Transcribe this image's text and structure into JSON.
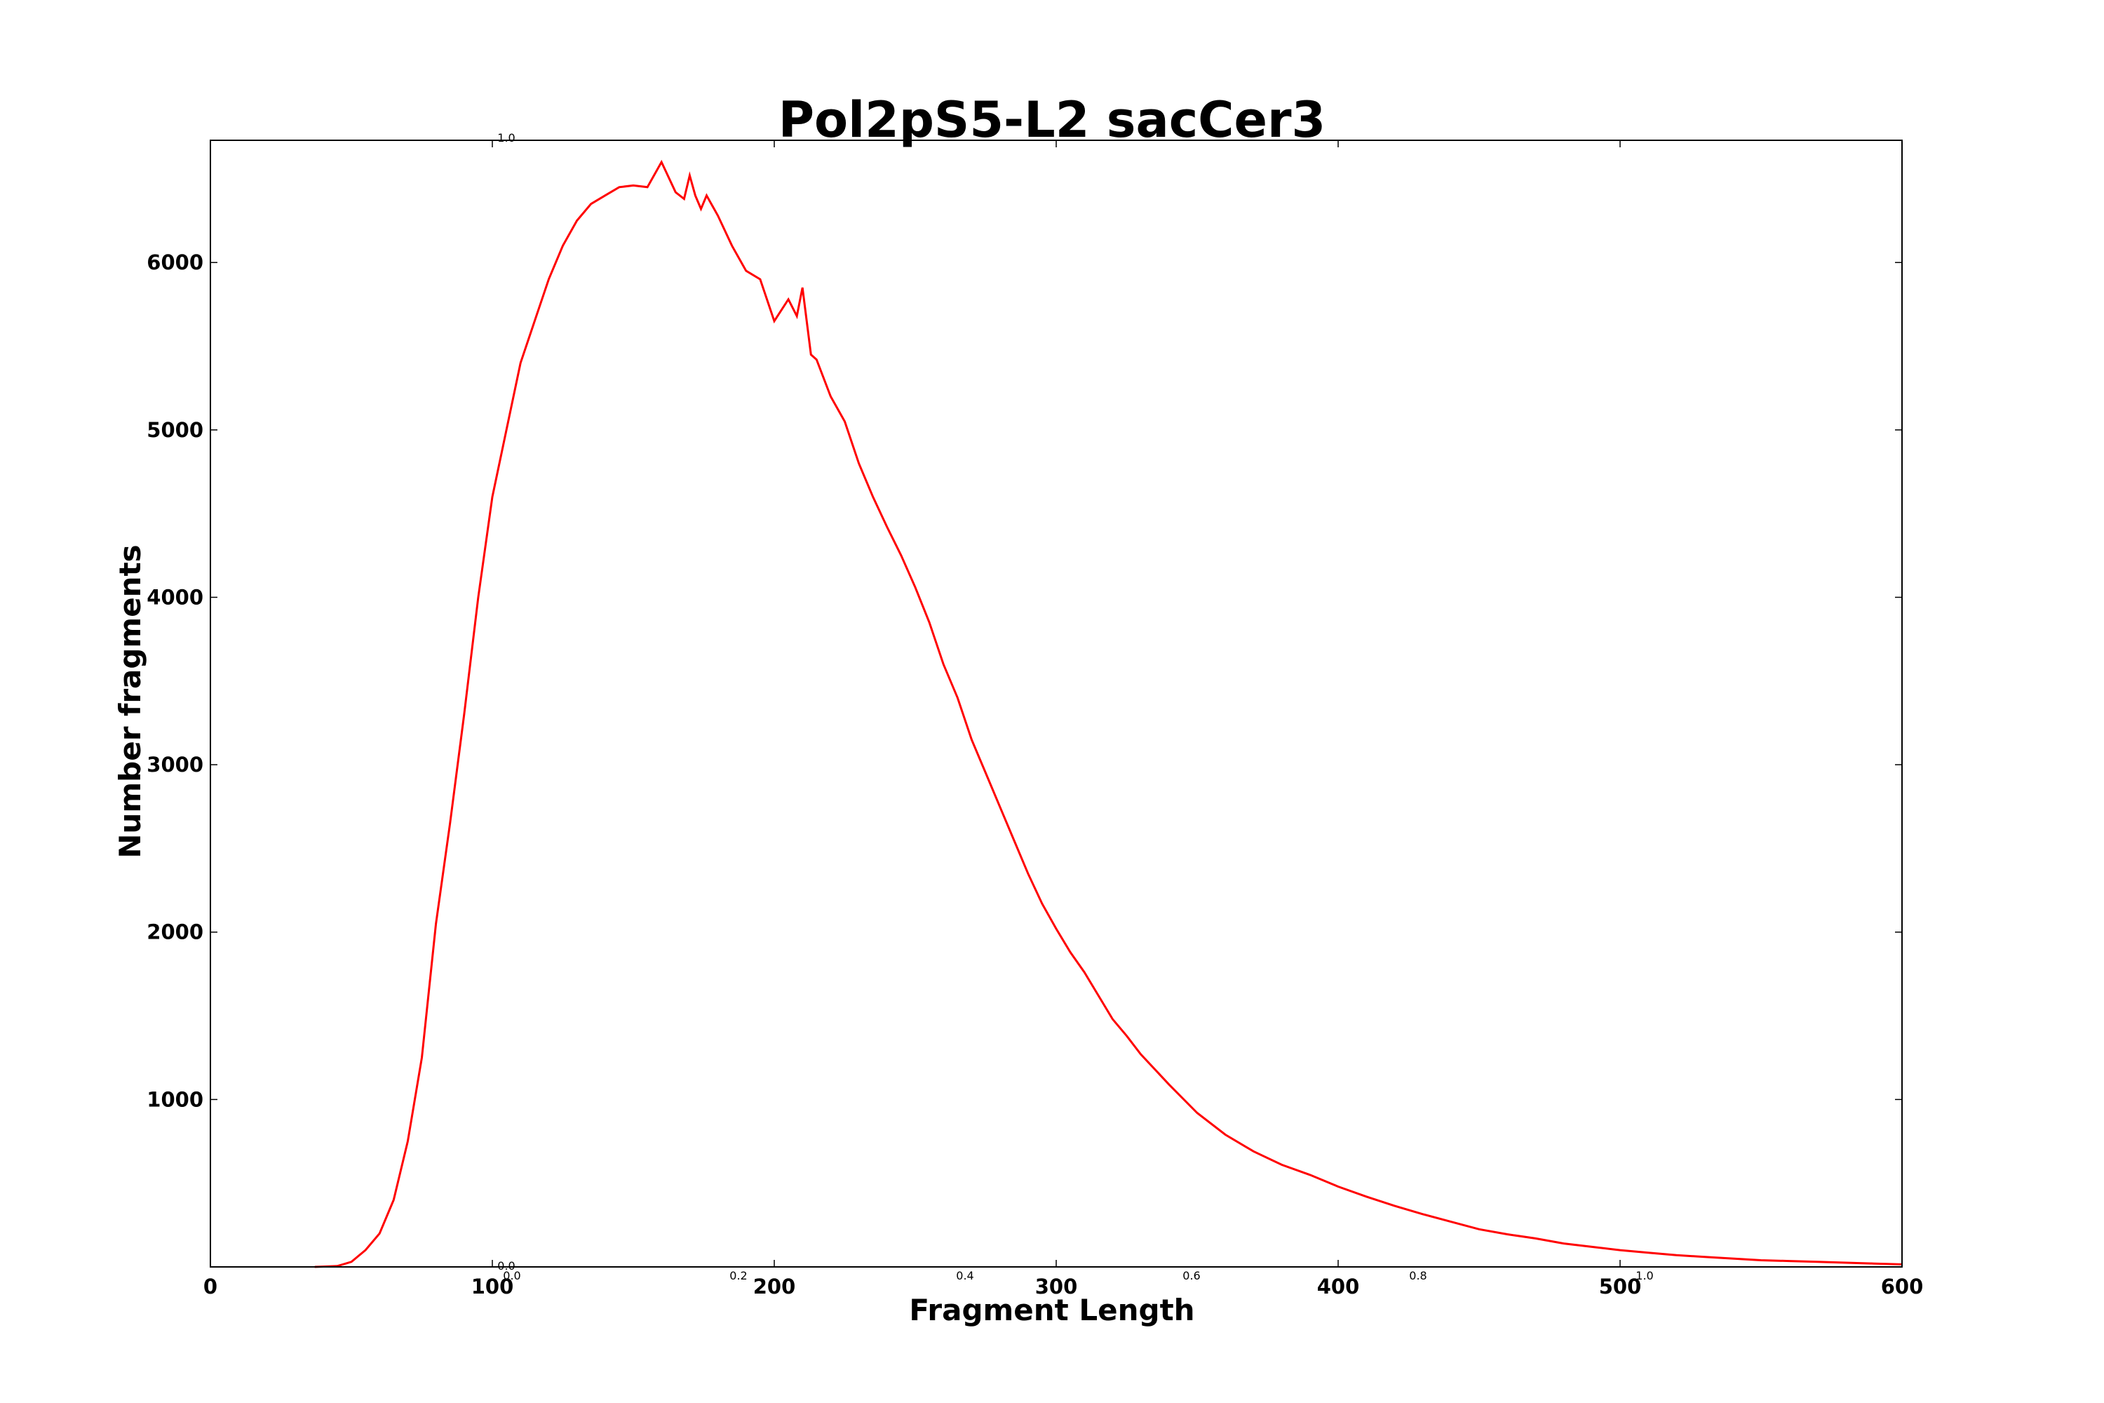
{
  "chart_data": {
    "type": "line",
    "title": "Pol2pS5-L2 sacCer3",
    "xlabel": "Fragment Length",
    "ylabel": "Number fragments",
    "xlim": [
      0,
      600
    ],
    "ylim": [
      0,
      6730
    ],
    "x_ticks": [
      "0",
      "100",
      "200",
      "300",
      "400",
      "500",
      "600"
    ],
    "y_ticks": [
      "1000",
      "2000",
      "3000",
      "4000",
      "5000",
      "6000"
    ],
    "secondary_x_ticks": [
      "0.0",
      "0.2",
      "0.4",
      "0.6",
      "0.8",
      "1.0"
    ],
    "secondary_y_ticks": [
      "0.0",
      "1.0"
    ],
    "grid": false,
    "legend": "none",
    "series": [
      {
        "color": "#ff0000",
        "x": [
          37,
          45,
          50,
          55,
          60,
          65,
          70,
          75,
          80,
          85,
          90,
          95,
          100,
          105,
          110,
          115,
          120,
          125,
          130,
          135,
          140,
          145,
          150,
          155,
          160,
          165,
          168,
          170,
          172,
          174,
          176,
          180,
          185,
          190,
          195,
          200,
          205,
          208,
          210,
          213,
          215,
          220,
          225,
          230,
          235,
          240,
          245,
          250,
          255,
          260,
          265,
          270,
          275,
          280,
          285,
          290,
          295,
          300,
          305,
          310,
          315,
          320,
          325,
          330,
          340,
          350,
          360,
          370,
          380,
          390,
          400,
          410,
          420,
          430,
          440,
          450,
          460,
          470,
          480,
          490,
          500,
          510,
          520,
          530,
          540,
          550,
          560,
          570,
          580,
          590,
          600
        ],
        "y": [
          0,
          5,
          30,
          100,
          200,
          400,
          750,
          1250,
          2050,
          2650,
          3300,
          4000,
          4600,
          5000,
          5400,
          5650,
          5900,
          6100,
          6250,
          6350,
          6400,
          6450,
          6460,
          6450,
          6600,
          6420,
          6380,
          6520,
          6400,
          6320,
          6400,
          6280,
          6100,
          5950,
          5900,
          5650,
          5780,
          5680,
          5850,
          5450,
          5420,
          5200,
          5050,
          4800,
          4600,
          4420,
          4250,
          4060,
          3850,
          3600,
          3400,
          3150,
          2950,
          2750,
          2550,
          2350,
          2170,
          2020,
          1880,
          1760,
          1620,
          1480,
          1380,
          1270,
          1090,
          920,
          790,
          690,
          610,
          550,
          480,
          420,
          365,
          315,
          270,
          225,
          195,
          170,
          140,
          120,
          100,
          85,
          70,
          60,
          50,
          40,
          35,
          30,
          25,
          20,
          15
        ]
      }
    ]
  }
}
